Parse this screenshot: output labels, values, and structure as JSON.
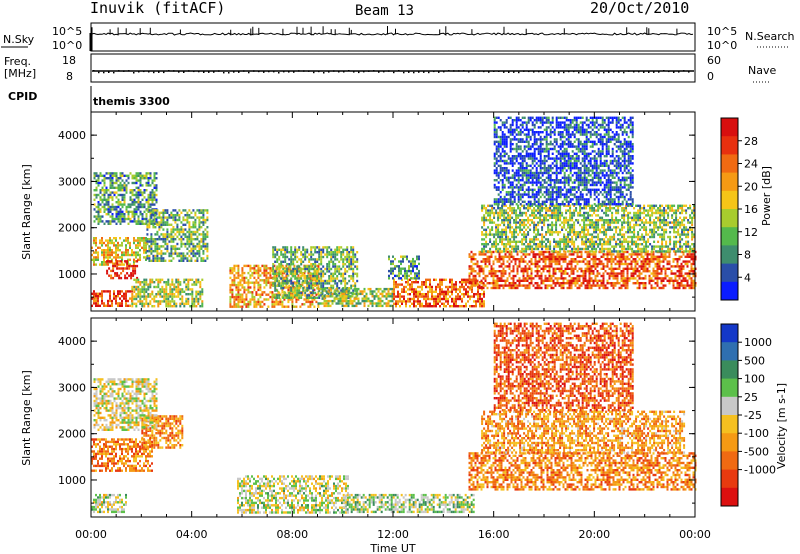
{
  "header": {
    "station": "Inuvik (fitACF)",
    "beam": "Beam 13",
    "date": "20/Oct/2010"
  },
  "small_panels": {
    "nsky": {
      "label": "N.Sky",
      "ticks": [
        "10^5",
        "10^0"
      ],
      "right_label": "N.Search",
      "right_ticks": [
        "10^5",
        "10^0"
      ]
    },
    "freq": {
      "label_line1": "Freq.",
      "label_line2": "[MHz]",
      "ticks": [
        "18",
        "8"
      ],
      "right_label": "Nave",
      "right_ticks": [
        "60",
        "0"
      ]
    },
    "cpid": {
      "label": "CPID",
      "value": "themis 3300"
    }
  },
  "chart_data": [
    {
      "type": "heatmap",
      "name": "power",
      "ylabel": "Slant Range [km]",
      "xlabel": "",
      "ytick_labels": [
        "1000",
        "2000",
        "3000",
        "4000"
      ],
      "yticks": [
        1000,
        2000,
        3000,
        4000
      ],
      "ylim": [
        200,
        4500
      ],
      "xlim": [
        0,
        24
      ],
      "colorbar": {
        "label": "Power [dB]",
        "ticks": [
          "4",
          "8",
          "12",
          "16",
          "20",
          "24",
          "28"
        ],
        "range": [
          0,
          32
        ],
        "colors": [
          "#0a1cff",
          "#2a4ea8",
          "#3e8d6e",
          "#54b94c",
          "#a8cc2e",
          "#f5c518",
          "#f59a14",
          "#f06a12",
          "#e8300f",
          "#d80f0f"
        ]
      },
      "regions": [
        {
          "t0": 0.0,
          "t1": 1.6,
          "r0": 300,
          "r1": 650,
          "level": 0.85
        },
        {
          "t0": 0.0,
          "t1": 2.2,
          "r0": 1200,
          "r1": 1800,
          "level": 0.55
        },
        {
          "t0": 0.6,
          "t1": 1.8,
          "r0": 900,
          "r1": 1300,
          "level": 0.9
        },
        {
          "t0": 0.1,
          "t1": 2.6,
          "r0": 2100,
          "r1": 3200,
          "level": 0.3
        },
        {
          "t0": 2.2,
          "t1": 4.6,
          "r0": 1300,
          "r1": 2400,
          "level": 0.35
        },
        {
          "t0": 1.6,
          "t1": 4.4,
          "r0": 300,
          "r1": 900,
          "level": 0.45
        },
        {
          "t0": 5.5,
          "t1": 9.0,
          "r0": 300,
          "r1": 1200,
          "level": 0.65
        },
        {
          "t0": 7.2,
          "t1": 10.6,
          "r0": 500,
          "r1": 1600,
          "level": 0.35
        },
        {
          "t0": 9.0,
          "t1": 12.0,
          "r0": 300,
          "r1": 700,
          "level": 0.45
        },
        {
          "t0": 12.0,
          "t1": 15.6,
          "r0": 300,
          "r1": 900,
          "level": 0.75
        },
        {
          "t0": 15.0,
          "t1": 24.0,
          "r0": 700,
          "r1": 1500,
          "level": 0.8
        },
        {
          "t0": 15.5,
          "t1": 24.0,
          "r0": 1500,
          "r1": 2500,
          "level": 0.4
        },
        {
          "t0": 16.0,
          "t1": 21.5,
          "r0": 2500,
          "r1": 4400,
          "level": 0.12
        },
        {
          "t0": 11.8,
          "t1": 13.0,
          "r0": 900,
          "r1": 1400,
          "level": 0.3
        }
      ]
    },
    {
      "type": "heatmap",
      "name": "velocity",
      "ylabel": "Slant Range [km]",
      "xlabel": "Time UT",
      "xtick_labels": [
        "00:00",
        "04:00",
        "08:00",
        "12:00",
        "16:00",
        "20:00",
        "00:00"
      ],
      "xticks": [
        0,
        4,
        8,
        12,
        16,
        20,
        24
      ],
      "ytick_labels": [
        "1000",
        "2000",
        "3000",
        "4000"
      ],
      "yticks": [
        1000,
        2000,
        3000,
        4000
      ],
      "ylim": [
        200,
        4500
      ],
      "xlim": [
        0,
        24
      ],
      "colorbar": {
        "label": "Velocity [m s-1]",
        "ticks": [
          "1000",
          "500",
          "100",
          "25",
          "-25",
          "-100",
          "-500",
          "-1000"
        ],
        "colors": [
          "#1438c8",
          "#2f6fb0",
          "#3a8c5c",
          "#5cc04a",
          "#c8c8c8",
          "#f5c020",
          "#f59a14",
          "#f06a12",
          "#e83a10",
          "#dc1010"
        ]
      },
      "regions": [
        {
          "t0": 0.0,
          "t1": 2.4,
          "r0": 1200,
          "r1": 1900,
          "level": 0.3
        },
        {
          "t0": 2.0,
          "t1": 3.6,
          "r0": 1700,
          "r1": 2400,
          "level": 0.3
        },
        {
          "t0": 0.0,
          "t1": 1.4,
          "r0": 300,
          "r1": 700,
          "level": 0.55
        },
        {
          "t0": 0.1,
          "t1": 2.6,
          "r0": 2100,
          "r1": 3200,
          "level": 0.5
        },
        {
          "t0": 5.8,
          "t1": 10.2,
          "r0": 300,
          "r1": 1100,
          "level": 0.55
        },
        {
          "t0": 10.0,
          "t1": 15.2,
          "r0": 300,
          "r1": 700,
          "level": 0.6
        },
        {
          "t0": 15.0,
          "t1": 24.0,
          "r0": 800,
          "r1": 1600,
          "level": 0.3
        },
        {
          "t0": 15.5,
          "t1": 23.6,
          "r0": 1600,
          "r1": 2500,
          "level": 0.35
        },
        {
          "t0": 16.0,
          "t1": 21.5,
          "r0": 2500,
          "r1": 4400,
          "level": 0.2
        }
      ]
    }
  ]
}
